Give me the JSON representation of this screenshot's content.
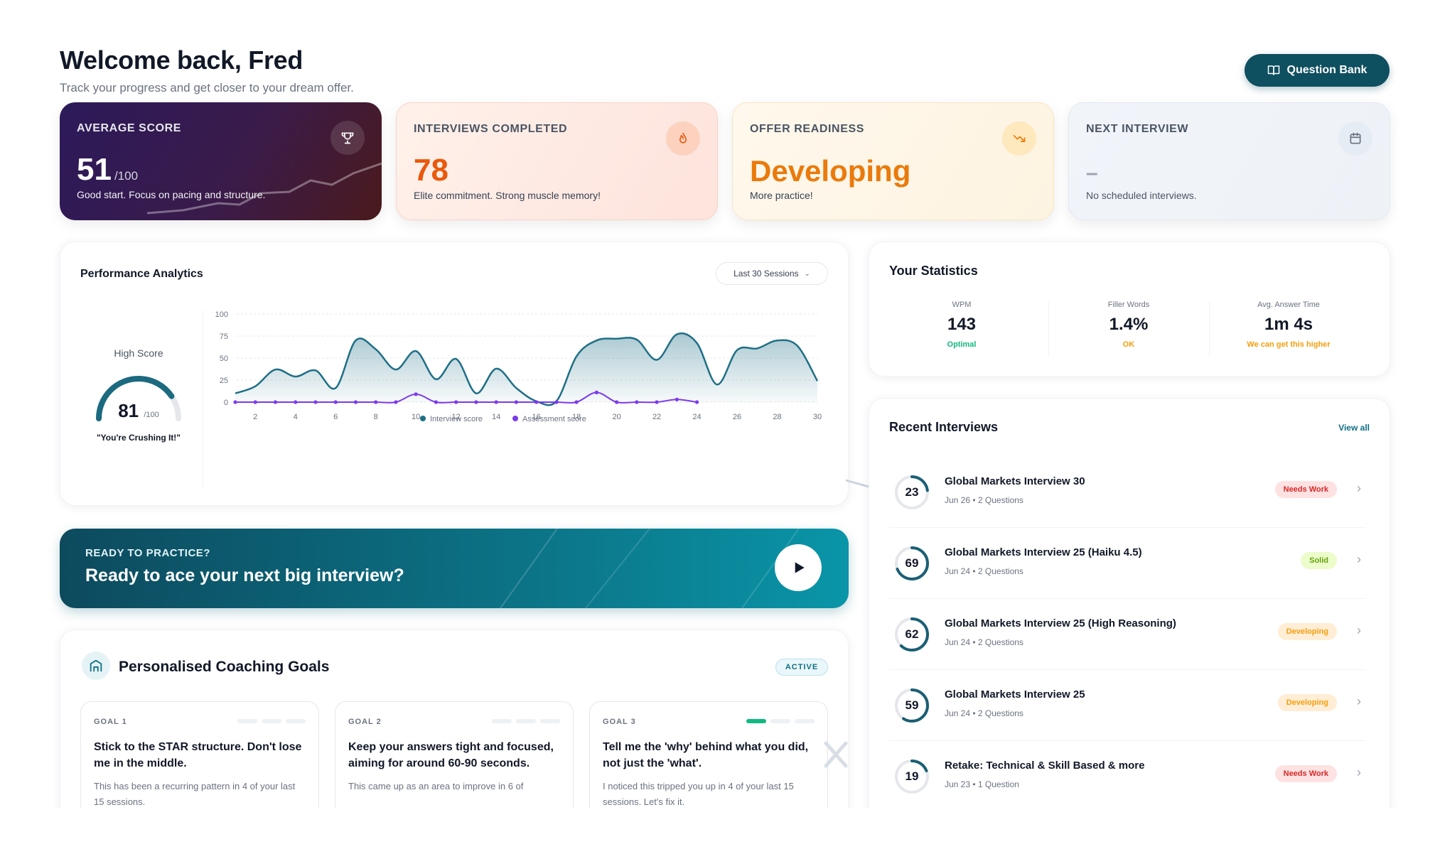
{
  "header": {
    "title": "Welcome back, Fred",
    "subtitle": "Track your progress and get closer to your dream offer.",
    "question_bank_label": "Question Bank"
  },
  "stat_cards": [
    {
      "label": "AVERAGE SCORE",
      "value": "51",
      "suffix": "/100",
      "caption": "Good start. Focus on pacing and structure.",
      "icon": "trophy-icon"
    },
    {
      "label": "INTERVIEWS COMPLETED",
      "value": "78",
      "caption": "Elite commitment. Strong muscle memory!",
      "icon": "flame-icon"
    },
    {
      "label": "OFFER READINESS",
      "value": "Developing",
      "caption": "More practice!",
      "icon": "trend-icon"
    },
    {
      "label": "NEXT INTERVIEW",
      "value": "–",
      "caption": "No scheduled interviews.",
      "icon": "calendar-icon"
    }
  ],
  "performance": {
    "title": "Performance Analytics",
    "range_select": "Last 30 Sessions",
    "high_score_label": "High Score",
    "high_score_value": "81",
    "high_score_suffix": "/100",
    "high_score_fraction": 0.81,
    "high_score_quote": "\"You're Crushing It!\""
  },
  "chart_data": {
    "type": "area",
    "x_ticks": [
      2,
      4,
      6,
      8,
      10,
      12,
      14,
      16,
      18,
      20,
      22,
      24,
      26,
      28,
      30
    ],
    "y_ticks": [
      0,
      25,
      50,
      75,
      100
    ],
    "ylim": [
      0,
      100
    ],
    "xlim": [
      1,
      30
    ],
    "legend_position": "bottom",
    "series": [
      {
        "name": "Interview score",
        "color": "#1f6f86",
        "x": [
          1,
          2,
          3,
          4,
          5,
          6,
          7,
          8,
          9,
          10,
          11,
          12,
          13,
          14,
          15,
          16,
          17,
          18,
          19,
          20,
          21,
          22,
          23,
          24,
          25,
          26,
          27,
          28,
          29,
          30
        ],
        "y": [
          10,
          18,
          37,
          29,
          36,
          16,
          70,
          60,
          37,
          58,
          26,
          49,
          10,
          38,
          16,
          1,
          1,
          52,
          70,
          72,
          71,
          48,
          77,
          67,
          20,
          59,
          61,
          70,
          64,
          24
        ]
      },
      {
        "name": "Assessment score",
        "color": "#7c3aed",
        "x": [
          1,
          2,
          3,
          4,
          5,
          6,
          7,
          8,
          9,
          10,
          11,
          12,
          13,
          14,
          15,
          16,
          17,
          18,
          19,
          20,
          21,
          22,
          23,
          24
        ],
        "y": [
          0,
          0,
          0,
          0,
          0,
          0,
          0,
          0,
          0,
          9,
          0,
          0,
          0,
          0,
          0,
          0,
          0,
          0,
          11,
          0,
          0,
          0,
          3,
          0
        ]
      }
    ]
  },
  "statistics": {
    "title": "Your Statistics",
    "items": [
      {
        "key": "WPM",
        "value": "143",
        "status": "Optimal",
        "color": "#10b981"
      },
      {
        "key": "Filler Words",
        "value": "1.4%",
        "status": "OK",
        "color": "#f59e0b"
      },
      {
        "key": "Avg. Answer Time",
        "value": "1m 4s",
        "status": "We can get this higher",
        "color": "#f59e0b"
      }
    ]
  },
  "recent": {
    "title": "Recent Interviews",
    "view_all": "View all",
    "items": [
      {
        "score": "23",
        "fraction": 0.23,
        "title": "Global Markets Interview 30",
        "meta": "Jun 26 • 2 Questions",
        "badge": "Needs Work",
        "badge_kind": "red"
      },
      {
        "score": "69",
        "fraction": 0.69,
        "title": "Global Markets Interview 25 (Haiku 4.5)",
        "meta": "Jun 24 • 2 Questions",
        "badge": "Solid",
        "badge_kind": "green"
      },
      {
        "score": "62",
        "fraction": 0.62,
        "title": "Global Markets Interview 25 (High Reasoning)",
        "meta": "Jun 24 • 2 Questions",
        "badge": "Developing",
        "badge_kind": "orange"
      },
      {
        "score": "59",
        "fraction": 0.59,
        "title": "Global Markets Interview 25",
        "meta": "Jun 24 • 2 Questions",
        "badge": "Developing",
        "badge_kind": "orange"
      },
      {
        "score": "19",
        "fraction": 0.19,
        "title": "Retake: Technical & Skill Based & more",
        "meta": "Jun 23 • 1 Question",
        "badge": "Needs Work",
        "badge_kind": "red"
      }
    ]
  },
  "cta": {
    "eyebrow": "READY TO PRACTICE?",
    "headline": "Ready to ace your next big interview?"
  },
  "goals": {
    "title": "Personalised Coaching Goals",
    "status": "ACTIVE",
    "items": [
      {
        "label": "GOAL 1",
        "progress_steps": 0,
        "title": "Stick to the STAR structure. Don't lose me in the middle.",
        "desc": "This has been a recurring pattern in 4 of your last 15 sessions."
      },
      {
        "label": "GOAL 2",
        "progress_steps": 0,
        "title": "Keep your answers tight and focused, aiming for around 60-90 seconds.",
        "desc": "This came up as an area to improve in 6 of"
      },
      {
        "label": "GOAL 3",
        "progress_steps": 1,
        "title": "Tell me the 'why' behind what you did, not just the 'what'.",
        "desc": "I noticed this tripped you up in 4 of your last 15 sessions. Let's fix it."
      }
    ]
  }
}
